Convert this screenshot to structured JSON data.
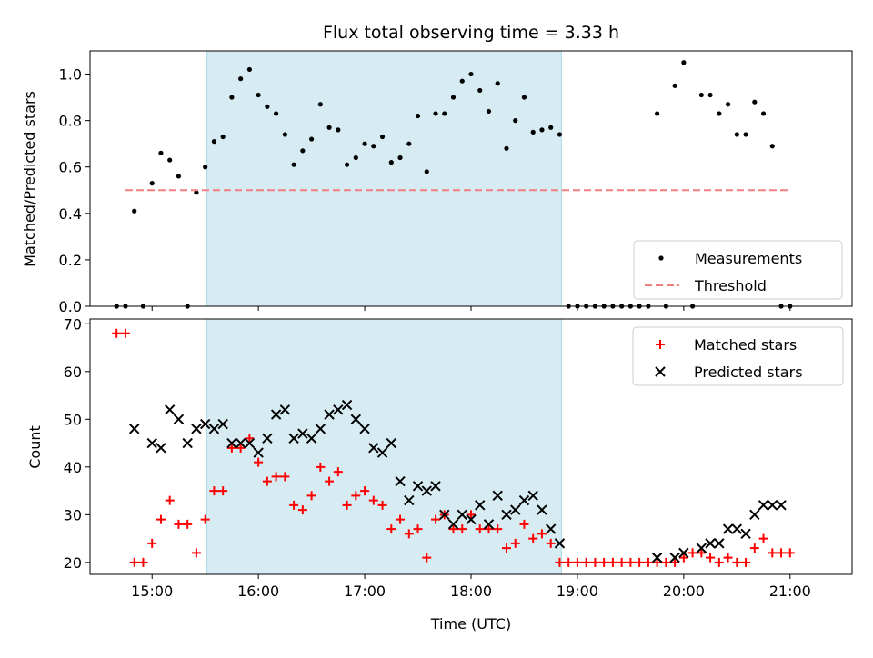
{
  "chart_data": {
    "title": "Flux total observing time = 3.33 h",
    "xlabel": "Time (UTC)",
    "x_ticks": [
      "15:00",
      "16:00",
      "17:00",
      "18:00",
      "19:00",
      "20:00",
      "21:00"
    ],
    "x_range": [
      "14:25",
      "21:35"
    ],
    "shaded_interval": {
      "start": "15:31",
      "end": "18:51",
      "color": "#add8e6"
    },
    "panels": [
      {
        "type": "scatter",
        "ylabel": "Matched/Predicted stars",
        "ylim": [
          0,
          1.1
        ],
        "y_ticks": [
          "0.0",
          "0.2",
          "0.4",
          "0.6",
          "0.8",
          "1.0"
        ],
        "legend": "bottom-right",
        "series": [
          {
            "name": "Measurements",
            "color": "#000000",
            "marker": "dot",
            "x": [
              "14:40",
              "14:45",
              "14:50",
              "14:55",
              "15:00",
              "15:05",
              "15:10",
              "15:15",
              "15:20",
              "15:25",
              "15:30",
              "15:35",
              "15:40",
              "15:45",
              "15:50",
              "15:55",
              "16:00",
              "16:05",
              "16:10",
              "16:15",
              "16:20",
              "16:25",
              "16:30",
              "16:35",
              "16:40",
              "16:45",
              "16:50",
              "16:55",
              "17:00",
              "17:05",
              "17:10",
              "17:15",
              "17:20",
              "17:25",
              "17:30",
              "17:35",
              "17:40",
              "17:45",
              "17:50",
              "17:55",
              "18:00",
              "18:05",
              "18:10",
              "18:15",
              "18:20",
              "18:25",
              "18:30",
              "18:35",
              "18:40",
              "18:45",
              "18:50",
              "18:55",
              "19:00",
              "19:05",
              "19:10",
              "19:15",
              "19:20",
              "19:25",
              "19:30",
              "19:35",
              "19:40",
              "19:45",
              "19:50",
              "19:55",
              "20:00",
              "20:05",
              "20:10",
              "20:15",
              "20:20",
              "20:25",
              "20:30",
              "20:35",
              "20:40",
              "20:45",
              "20:50",
              "20:55",
              "21:00"
            ],
            "y": [
              0.0,
              0.0,
              0.41,
              0.0,
              0.53,
              0.66,
              0.63,
              0.56,
              0.0,
              0.49,
              0.6,
              0.71,
              0.73,
              0.9,
              0.98,
              1.02,
              0.91,
              0.86,
              0.83,
              0.74,
              0.61,
              0.67,
              0.72,
              0.87,
              0.77,
              0.76,
              0.61,
              0.64,
              0.7,
              0.69,
              0.73,
              0.62,
              0.64,
              0.7,
              0.82,
              0.58,
              0.83,
              0.83,
              0.9,
              0.97,
              1.0,
              0.93,
              0.84,
              0.96,
              0.68,
              0.8,
              0.9,
              0.75,
              0.76,
              0.77,
              0.74,
              0.0,
              0.0,
              0.0,
              0.0,
              0.0,
              0.0,
              0.0,
              0.0,
              0.0,
              0.0,
              0.83,
              0.0,
              0.95,
              1.05,
              0.0,
              0.91,
              0.91,
              0.83,
              0.87,
              0.74,
              0.74,
              0.88,
              0.83,
              0.69,
              0.0,
              0.0
            ]
          },
          {
            "name": "Threshold",
            "color": "#f08080",
            "style": "dashed",
            "x": [
              "14:45",
              "21:00"
            ],
            "y": [
              0.5,
              0.5
            ]
          }
        ]
      },
      {
        "type": "scatter",
        "ylabel": "Count",
        "ylim": [
          17.5,
          71
        ],
        "y_ticks": [
          "20",
          "30",
          "40",
          "50",
          "60",
          "70"
        ],
        "legend": "top-right",
        "series": [
          {
            "name": "Matched stars",
            "color": "#ff0000",
            "marker": "plus",
            "x": [
              "14:40",
              "14:45",
              "14:50",
              "14:55",
              "15:00",
              "15:05",
              "15:10",
              "15:15",
              "15:20",
              "15:25",
              "15:30",
              "15:35",
              "15:40",
              "15:45",
              "15:50",
              "15:55",
              "16:00",
              "16:05",
              "16:10",
              "16:15",
              "16:20",
              "16:25",
              "16:30",
              "16:35",
              "16:40",
              "16:45",
              "16:50",
              "16:55",
              "17:00",
              "17:05",
              "17:10",
              "17:15",
              "17:20",
              "17:25",
              "17:30",
              "17:35",
              "17:40",
              "17:45",
              "17:50",
              "17:55",
              "18:00",
              "18:05",
              "18:10",
              "18:15",
              "18:20",
              "18:25",
              "18:30",
              "18:35",
              "18:40",
              "18:45",
              "18:50",
              "18:55",
              "19:00",
              "19:05",
              "19:10",
              "19:15",
              "19:20",
              "19:25",
              "19:30",
              "19:35",
              "19:40",
              "19:45",
              "19:50",
              "19:55",
              "20:00",
              "20:05",
              "20:10",
              "20:15",
              "20:20",
              "20:25",
              "20:30",
              "20:35",
              "20:40",
              "20:45",
              "20:50",
              "20:55",
              "21:00"
            ],
            "y": [
              68,
              68,
              20,
              20,
              24,
              29,
              33,
              28,
              28,
              22,
              29,
              35,
              35,
              44,
              44,
              46,
              41,
              37,
              38,
              38,
              32,
              31,
              34,
              40,
              37,
              39,
              32,
              34,
              35,
              33,
              32,
              27,
              29,
              26,
              27,
              21,
              29,
              30,
              27,
              27,
              30,
              27,
              27,
              27,
              23,
              24,
              28,
              25,
              26,
              24,
              20,
              20,
              20,
              20,
              20,
              20,
              20,
              20,
              20,
              20,
              20,
              20,
              20,
              20,
              21,
              22,
              22,
              21,
              20,
              21,
              20,
              20,
              23,
              25,
              22,
              22,
              22
            ]
          },
          {
            "name": "Predicted stars",
            "color": "#000000",
            "marker": "x",
            "x": [
              "14:50",
              "15:00",
              "15:05",
              "15:10",
              "15:15",
              "15:20",
              "15:25",
              "15:30",
              "15:35",
              "15:40",
              "15:45",
              "15:50",
              "15:55",
              "16:00",
              "16:05",
              "16:10",
              "16:15",
              "16:20",
              "16:25",
              "16:30",
              "16:35",
              "16:40",
              "16:45",
              "16:50",
              "16:55",
              "17:00",
              "17:05",
              "17:10",
              "17:15",
              "17:20",
              "17:25",
              "17:30",
              "17:35",
              "17:40",
              "17:45",
              "17:50",
              "17:55",
              "18:00",
              "18:05",
              "18:10",
              "18:15",
              "18:20",
              "18:25",
              "18:30",
              "18:35",
              "18:40",
              "18:45",
              "18:50",
              "19:45",
              "19:55",
              "20:00",
              "20:10",
              "20:15",
              "20:20",
              "20:25",
              "20:30",
              "20:35",
              "20:40",
              "20:45",
              "20:50",
              "20:55"
            ],
            "y": [
              48,
              45,
              44,
              52,
              50,
              45,
              48,
              49,
              48,
              49,
              45,
              45,
              45,
              43,
              46,
              51,
              52,
              46,
              47,
              46,
              48,
              51,
              52,
              53,
              50,
              48,
              44,
              43,
              45,
              37,
              33,
              36,
              35,
              36,
              30,
              28,
              30,
              29,
              32,
              28,
              34,
              30,
              31,
              33,
              34,
              31,
              27,
              24,
              21,
              21,
              22,
              23,
              24,
              24,
              27,
              27,
              26,
              30,
              32,
              32,
              32
            ]
          }
        ]
      }
    ]
  }
}
